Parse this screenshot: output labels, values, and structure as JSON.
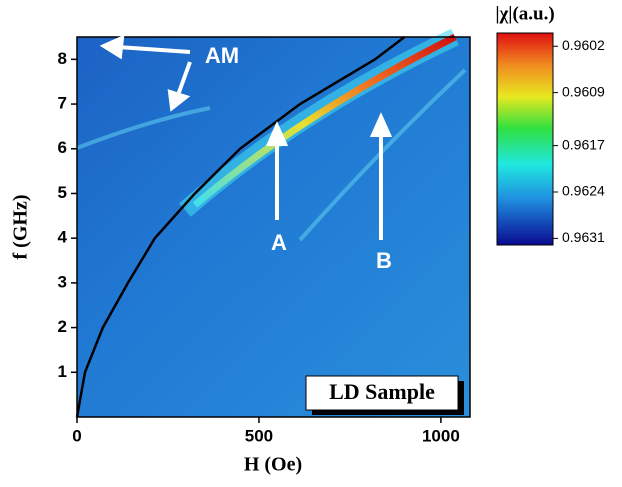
{
  "chart_data": {
    "type": "line",
    "xlabel": "H (Oe)",
    "ylabel": "f (GHz)",
    "xlim": [
      0,
      1080
    ],
    "ylim": [
      0,
      8.5
    ],
    "xticks": [
      0,
      500,
      1000
    ],
    "yticks": [
      1,
      2,
      3,
      4,
      5,
      6,
      7,
      8
    ],
    "x": [
      0,
      22,
      71,
      140,
      214,
      324,
      448,
      613,
      819,
      900
    ],
    "series": [
      {
        "color": "#000000",
        "values": [
          0,
          1,
          2,
          3,
          4,
          5,
          6,
          7,
          8,
          8.5
        ]
      }
    ],
    "colorbar": {
      "label": "|χ|(a.u.)",
      "clim": [
        0.96,
        0.9632
      ],
      "ticks": [
        0.9602,
        0.9609,
        0.9617,
        0.9624,
        0.9631
      ]
    },
    "annotations": [
      "AM",
      "A",
      "B",
      "LD Sample"
    ]
  }
}
